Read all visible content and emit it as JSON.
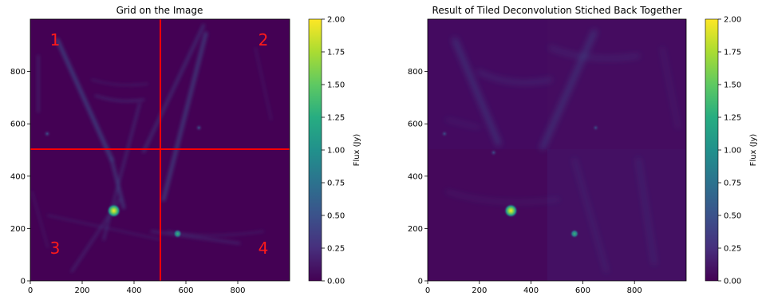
{
  "chart_data": [
    {
      "type": "heatmap",
      "title": "Grid on the Image",
      "xlim": [
        0,
        1000
      ],
      "ylim": [
        0,
        1000
      ],
      "x_ticks": [
        0,
        200,
        400,
        600,
        800
      ],
      "y_ticks": [
        0,
        200,
        400,
        600,
        800
      ],
      "colorbar": {
        "label": "Flux (Jy)",
        "range": [
          0.0,
          2.0
        ],
        "ticks": [
          "0.00",
          "0.25",
          "0.50",
          "0.75",
          "1.00",
          "1.25",
          "1.50",
          "1.75",
          "2.00"
        ],
        "colormap": "viridis"
      },
      "grid_lines": {
        "x": 500,
        "y": 500,
        "color": "#ff0000"
      },
      "quadrant_labels": [
        "1",
        "2",
        "3",
        "4"
      ],
      "sources": [
        {
          "x": 322,
          "y": 268,
          "flux": 1.9
        },
        {
          "x": 568,
          "y": 180,
          "flux": 0.6
        },
        {
          "x": 65,
          "y": 562,
          "flux": 0.45
        },
        {
          "x": 650,
          "y": 585,
          "flux": 0.35
        }
      ]
    },
    {
      "type": "heatmap",
      "title": "Result of Tiled Deconvolution Stiched Back Together",
      "xlim": [
        0,
        1000
      ],
      "ylim": [
        0,
        1000
      ],
      "x_ticks": [
        0,
        200,
        400,
        600,
        800
      ],
      "y_ticks": [
        0,
        200,
        400,
        600,
        800
      ],
      "colorbar": {
        "label": "Flux (Jy)",
        "range": [
          0.0,
          2.0
        ],
        "ticks": [
          "0.00",
          "0.25",
          "0.50",
          "0.75",
          "1.00",
          "1.25",
          "1.50",
          "1.75",
          "2.00"
        ],
        "colormap": "viridis"
      },
      "sources": [
        {
          "x": 322,
          "y": 268,
          "flux": 1.95
        },
        {
          "x": 568,
          "y": 180,
          "flux": 0.75
        },
        {
          "x": 65,
          "y": 562,
          "flux": 0.45
        },
        {
          "x": 650,
          "y": 585,
          "flux": 0.4
        },
        {
          "x": 255,
          "y": 490,
          "flux": 0.25
        }
      ]
    }
  ],
  "colors": {
    "background": "#440154",
    "grid_line": "#ff0000",
    "quadrant_label": "#ff1a1a"
  }
}
